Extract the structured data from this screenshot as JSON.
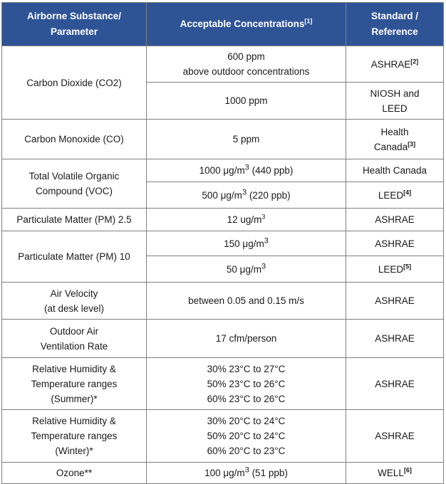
{
  "header": {
    "col1": [
      "Airborne Substance/",
      "Parameter"
    ],
    "col2": [
      "Acceptable",
      "Concentrations"
    ],
    "col2_note": "[1]",
    "col3": [
      "Standard /",
      "Reference"
    ]
  },
  "rows": {
    "co2": {
      "name": "Carbon Dioxide (CO2)",
      "conc1": [
        "600 ppm",
        "above outdoor concentrations"
      ],
      "std1": "ASHRAE",
      "std1_note": "[2]",
      "conc2": "1000 ppm",
      "std2": [
        "NIOSH and",
        "LEED"
      ]
    },
    "co": {
      "name": "Carbon Monoxide (CO)",
      "conc": "5 ppm",
      "std": [
        "Health",
        "Canada"
      ],
      "std_note": "[3]"
    },
    "voc": {
      "name": [
        "Total Volatile Organic",
        "Compound (VOC)"
      ],
      "conc1_pre": "1000 μg/m",
      "conc1_sup": "3",
      "conc1_post": " (440 ppb)",
      "std1": "Health Canada",
      "conc2_pre": "500 μg/m",
      "conc2_sup": "3",
      "conc2_post": " (220 ppb)",
      "std2": "LEED",
      "std2_note": "[4]"
    },
    "pm25": {
      "name": "Particulate Matter (PM) 2.5",
      "conc_pre": "12 ug/m",
      "conc_sup": "3",
      "std": "ASHRAE"
    },
    "pm10": {
      "name": "Particulate Matter (PM) 10",
      "conc1_pre": "150 μg/m",
      "conc1_sup": "3",
      "std1": "ASHRAE",
      "conc2_pre": "50 μg/m",
      "conc2_sup": "3",
      "std2": "LEED",
      "std2_note": "[5]"
    },
    "velocity": {
      "name": [
        "Air Velocity",
        "(at desk level)"
      ],
      "conc": "between 0.05 and 0.15 m/s",
      "std": "ASHRAE"
    },
    "ventilation": {
      "name": [
        "Outdoor Air",
        "Ventilation Rate"
      ],
      "conc": "17 cfm/person",
      "std": "ASHRAE"
    },
    "rh_summer": {
      "name": [
        "Relative Humidity &",
        "Temperature ranges",
        "(Summer)*"
      ],
      "conc": [
        "30% 23°C to 27°C",
        "50% 23°C to 26°C",
        "60% 23°C to 26°C"
      ],
      "std": "ASHRAE"
    },
    "rh_winter": {
      "name": [
        "Relative Humidity &",
        "Temperature ranges",
        "(Winter)*"
      ],
      "conc": [
        "30% 20°C to 24°C",
        "50% 20°C to 24°C",
        "60% 20°C to 23°C"
      ],
      "std": "ASHRAE"
    },
    "ozone": {
      "name": "Ozone**",
      "conc_pre": "100 μg/m",
      "conc_sup": "3",
      "conc_post": " (51 ppb)",
      "std": "WELL",
      "std_note": "[6]"
    }
  }
}
